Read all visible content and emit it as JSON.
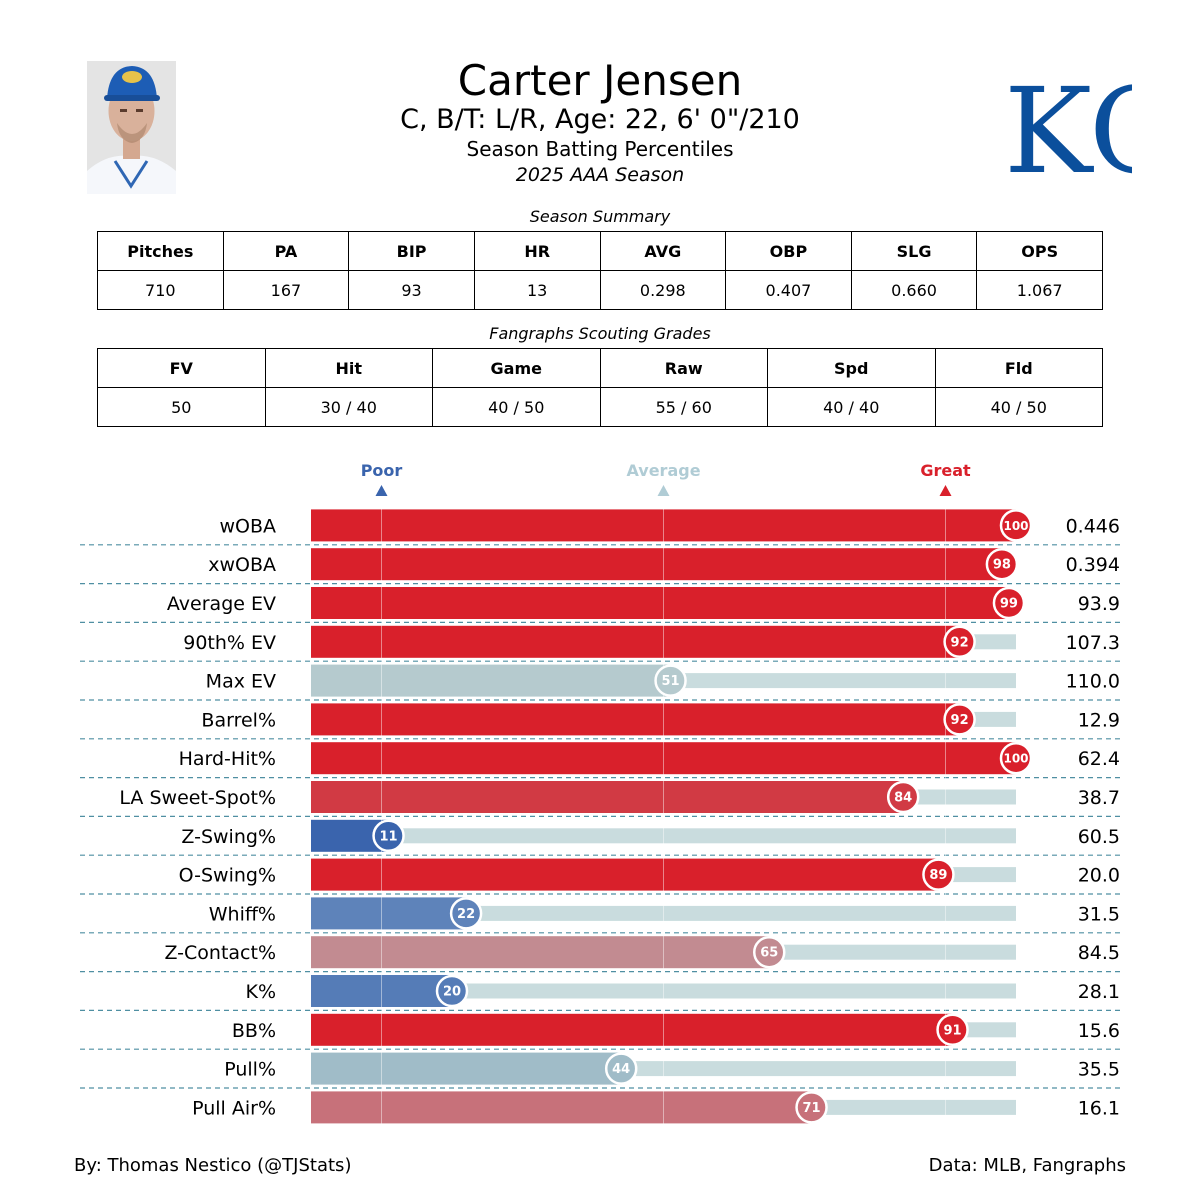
{
  "header": {
    "name": "Carter Jensen",
    "bio": "C, B/T: L/R, Age: 22, 6' 0\"/210",
    "subtitle": "Season Batting Percentiles",
    "season": "2025 AAA Season",
    "logo_text": "KC"
  },
  "summary": {
    "caption": "Season Summary",
    "headers": [
      "Pitches",
      "PA",
      "BIP",
      "HR",
      "AVG",
      "OBP",
      "SLG",
      "OPS"
    ],
    "values": [
      "710",
      "167",
      "93",
      "13",
      "0.298",
      "0.407",
      "0.660",
      "1.067"
    ]
  },
  "grades": {
    "caption": "Fangraphs Scouting Grades",
    "headers": [
      "FV",
      "Hit",
      "Game",
      "Raw",
      "Spd",
      "Fld"
    ],
    "values": [
      "50",
      "30 / 40",
      "40 / 50",
      "55 / 60",
      "40 / 40",
      "40 / 50"
    ]
  },
  "chart_data": {
    "type": "bar",
    "title": "Season Batting Percentiles",
    "xlim": [
      0,
      100
    ],
    "markers": [
      {
        "label": "Poor",
        "value": 10,
        "color": "#3a64ad"
      },
      {
        "label": "Average",
        "value": 50,
        "color": "#b0ccd5"
      },
      {
        "label": "Great",
        "value": 90,
        "color": "#d9202b"
      }
    ],
    "categories": [
      "wOBA",
      "xwOBA",
      "Average EV",
      "90th% EV",
      "Max EV",
      "Barrel%",
      "Hard-Hit%",
      "LA Sweet-Spot%",
      "Z-Swing%",
      "O-Swing%",
      "Whiff%",
      "Z-Contact%",
      "K%",
      "BB%",
      "Pull%",
      "Pull Air%"
    ],
    "percentiles": [
      100,
      98,
      99,
      92,
      51,
      92,
      100,
      84,
      11,
      89,
      22,
      65,
      20,
      91,
      44,
      71
    ],
    "stat_values": [
      "0.446",
      "0.394",
      "93.9",
      "107.3",
      "110.0",
      "12.9",
      "62.4",
      "38.7",
      "60.5",
      "20.0",
      "31.5",
      "84.5",
      "28.1",
      "15.6",
      "35.5",
      "16.1"
    ],
    "colors": [
      "#d9202b",
      "#d9202b",
      "#d9202b",
      "#d9202b",
      "#b5cace",
      "#d9202b",
      "#d9202b",
      "#d13a44",
      "#3a64ad",
      "#d9202b",
      "#5e83ba",
      "#c28b91",
      "#557cb7",
      "#d9202b",
      "#a0bcc8",
      "#c7717a"
    ],
    "track_color": "#c9dcde"
  },
  "footer": {
    "left": "By: Thomas Nestico (@TJStats)",
    "right": "Data: MLB, Fangraphs"
  }
}
